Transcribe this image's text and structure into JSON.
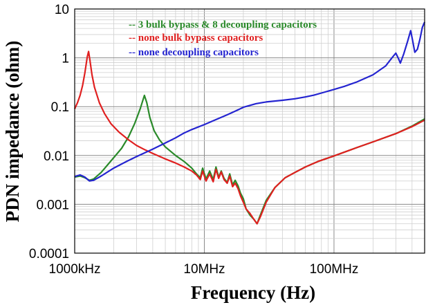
{
  "chart_data": {
    "type": "line",
    "title": "",
    "xlabel": "Frequency (Hz)",
    "ylabel": "PDN impedance (ohm)",
    "x_scale": "log",
    "y_scale": "log",
    "xlim": [
      1000000,
      500000000
    ],
    "ylim": [
      0.0001,
      10
    ],
    "grid": true,
    "legend_position": "top-center",
    "x_tick_labels": [
      {
        "value": 1000000,
        "label": "1000kHz"
      },
      {
        "value": 10000000,
        "label": "10MHz"
      },
      {
        "value": 100000000,
        "label": "100MHz"
      }
    ],
    "y_tick_labels": [
      {
        "value": 10,
        "label": "10"
      },
      {
        "value": 1,
        "label": "1"
      },
      {
        "value": 0.1,
        "label": "0.1"
      },
      {
        "value": 0.01,
        "label": "0.01"
      },
      {
        "value": 0.001,
        "label": "0.001"
      },
      {
        "value": 0.0001,
        "label": "0.0001"
      }
    ],
    "series": [
      {
        "name": "-- 3 bulk bypass & 8 decoupling capacitors",
        "color": "#2a8a2a",
        "points": [
          [
            1000000,
            0.0036
          ],
          [
            1100000,
            0.0038
          ],
          [
            1200000,
            0.0035
          ],
          [
            1300000,
            0.0031
          ],
          [
            1400000,
            0.0033
          ],
          [
            1600000,
            0.0045
          ],
          [
            1800000,
            0.0065
          ],
          [
            2000000,
            0.009
          ],
          [
            2300000,
            0.014
          ],
          [
            2600000,
            0.024
          ],
          [
            2900000,
            0.045
          ],
          [
            3200000,
            0.09
          ],
          [
            3450000,
            0.17
          ],
          [
            3600000,
            0.12
          ],
          [
            3800000,
            0.06
          ],
          [
            4100000,
            0.032
          ],
          [
            4500000,
            0.021
          ],
          [
            5000000,
            0.015
          ],
          [
            6000000,
            0.01
          ],
          [
            7000000,
            0.0075
          ],
          [
            8000000,
            0.0055
          ],
          [
            8700000,
            0.0042
          ],
          [
            9300000,
            0.0035
          ],
          [
            9700000,
            0.0055
          ],
          [
            10300000,
            0.0033
          ],
          [
            11000000,
            0.0048
          ],
          [
            11700000,
            0.0032
          ],
          [
            12300000,
            0.0058
          ],
          [
            12900000,
            0.0036
          ],
          [
            13500000,
            0.0048
          ],
          [
            14200000,
            0.0034
          ],
          [
            15000000,
            0.0028
          ],
          [
            15700000,
            0.0042
          ],
          [
            16500000,
            0.0025
          ],
          [
            17300000,
            0.0031
          ],
          [
            18200000,
            0.0024
          ],
          [
            19000000,
            0.0017
          ],
          [
            20000000,
            0.0013
          ],
          [
            21000000,
            0.0008
          ],
          [
            22500000,
            0.0006
          ],
          [
            24000000,
            0.0005
          ],
          [
            25500000,
            0.0004
          ],
          [
            27000000,
            0.0006
          ],
          [
            30000000,
            0.0012
          ],
          [
            35000000,
            0.0022
          ],
          [
            42000000,
            0.0035
          ],
          [
            50000000,
            0.0045
          ],
          [
            60000000,
            0.0058
          ],
          [
            75000000,
            0.0075
          ],
          [
            100000000,
            0.0098
          ],
          [
            150000000,
            0.0145
          ],
          [
            200000000,
            0.019
          ],
          [
            300000000,
            0.028
          ],
          [
            400000000,
            0.04
          ],
          [
            500000000,
            0.056
          ]
        ]
      },
      {
        "name": "-- none bulk bypass capacitors",
        "color": "#e02020",
        "points": [
          [
            1000000,
            0.09
          ],
          [
            1050000,
            0.12
          ],
          [
            1100000,
            0.17
          ],
          [
            1150000,
            0.27
          ],
          [
            1200000,
            0.5
          ],
          [
            1250000,
            1.05
          ],
          [
            1280000,
            1.35
          ],
          [
            1310000,
            0.9
          ],
          [
            1360000,
            0.45
          ],
          [
            1420000,
            0.25
          ],
          [
            1550000,
            0.12
          ],
          [
            1700000,
            0.072
          ],
          [
            1900000,
            0.045
          ],
          [
            2200000,
            0.03
          ],
          [
            2600000,
            0.021
          ],
          [
            3000000,
            0.016
          ],
          [
            3500000,
            0.013
          ],
          [
            4000000,
            0.011
          ],
          [
            5000000,
            0.0085
          ],
          [
            6000000,
            0.007
          ],
          [
            7000000,
            0.0058
          ],
          [
            8000000,
            0.0048
          ],
          [
            8700000,
            0.004
          ],
          [
            9300000,
            0.0032
          ],
          [
            9700000,
            0.0048
          ],
          [
            10300000,
            0.003
          ],
          [
            11000000,
            0.0042
          ],
          [
            11700000,
            0.0029
          ],
          [
            12300000,
            0.0052
          ],
          [
            12900000,
            0.0034
          ],
          [
            13500000,
            0.0046
          ],
          [
            14200000,
            0.0032
          ],
          [
            15000000,
            0.0027
          ],
          [
            15700000,
            0.0038
          ],
          [
            16500000,
            0.0023
          ],
          [
            17300000,
            0.0027
          ],
          [
            18200000,
            0.0021
          ],
          [
            19000000,
            0.0015
          ],
          [
            20000000,
            0.0011
          ],
          [
            21000000,
            0.0008
          ],
          [
            22500000,
            0.00065
          ],
          [
            24000000,
            0.0005
          ],
          [
            25500000,
            0.0004
          ],
          [
            27000000,
            0.00055
          ],
          [
            30000000,
            0.0011
          ],
          [
            35000000,
            0.0022
          ],
          [
            42000000,
            0.0035
          ],
          [
            50000000,
            0.0045
          ],
          [
            60000000,
            0.0058
          ],
          [
            75000000,
            0.0075
          ],
          [
            100000000,
            0.0098
          ],
          [
            150000000,
            0.0145
          ],
          [
            200000000,
            0.019
          ],
          [
            300000000,
            0.028
          ],
          [
            400000000,
            0.039
          ],
          [
            500000000,
            0.053
          ]
        ]
      },
      {
        "name": "-- none decoupling capacitors",
        "color": "#2424d0",
        "points": [
          [
            1000000,
            0.0037
          ],
          [
            1100000,
            0.004
          ],
          [
            1200000,
            0.0036
          ],
          [
            1300000,
            0.003
          ],
          [
            1400000,
            0.0031
          ],
          [
            1600000,
            0.0038
          ],
          [
            2000000,
            0.0055
          ],
          [
            2500000,
            0.0075
          ],
          [
            3000000,
            0.0095
          ],
          [
            4000000,
            0.0135
          ],
          [
            5000000,
            0.018
          ],
          [
            6000000,
            0.023
          ],
          [
            7000000,
            0.029
          ],
          [
            8000000,
            0.034
          ],
          [
            10000000,
            0.043
          ],
          [
            12000000,
            0.053
          ],
          [
            15000000,
            0.068
          ],
          [
            18000000,
            0.085
          ],
          [
            20000000,
            0.097
          ],
          [
            25000000,
            0.115
          ],
          [
            30000000,
            0.125
          ],
          [
            40000000,
            0.135
          ],
          [
            50000000,
            0.145
          ],
          [
            60000000,
            0.158
          ],
          [
            70000000,
            0.172
          ],
          [
            80000000,
            0.19
          ],
          [
            100000000,
            0.225
          ],
          [
            120000000,
            0.26
          ],
          [
            150000000,
            0.32
          ],
          [
            200000000,
            0.45
          ],
          [
            250000000,
            0.68
          ],
          [
            280000000,
            1.0
          ],
          [
            300000000,
            1.25
          ],
          [
            315000000,
            0.95
          ],
          [
            325000000,
            0.78
          ],
          [
            345000000,
            1.2
          ],
          [
            370000000,
            2.2
          ],
          [
            390000000,
            3.6
          ],
          [
            405000000,
            2.2
          ],
          [
            420000000,
            1.3
          ],
          [
            440000000,
            1.5
          ],
          [
            460000000,
            2.4
          ],
          [
            480000000,
            4.2
          ],
          [
            500000000,
            5.4
          ]
        ]
      }
    ]
  }
}
